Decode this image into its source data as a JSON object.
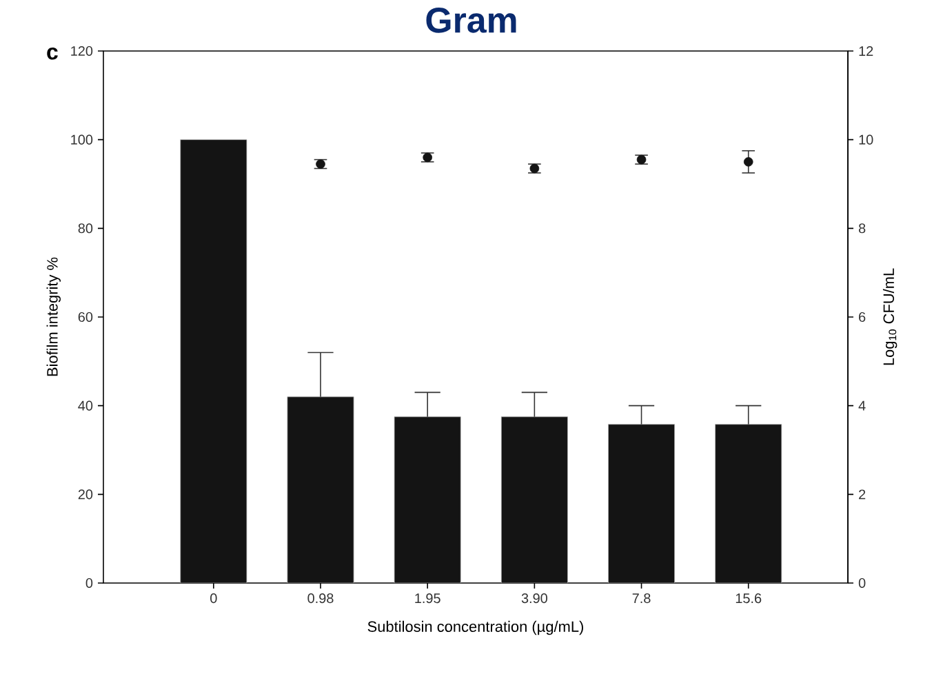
{
  "chart_data": {
    "type": "bar",
    "title": "Gram",
    "xlabel": "Subtilosin concentration (µg/mL)",
    "ylabel": "Biofilm integrity %",
    "y2label": "Log$_{10}$ CFU/mL",
    "annotations": [
      "c"
    ],
    "categories": [
      "0",
      "0.98",
      "1.95",
      "3.90",
      "7.8",
      "15.6"
    ],
    "ylim": [
      0,
      120
    ],
    "yticks": [
      0,
      20,
      40,
      60,
      80,
      100,
      120
    ],
    "y2lim": [
      0,
      12
    ],
    "y2ticks": [
      0,
      2,
      4,
      6,
      8,
      10,
      12
    ],
    "grid": false,
    "series": [
      {
        "color": "#141414",
        "values": [
          100,
          42,
          37.5,
          37.5,
          35.8,
          35.8
        ],
        "errors": [
          null,
          10,
          5.5,
          5.5,
          4.2,
          4.2
        ]
      },
      {
        "type": "scatter",
        "axis": "y2",
        "color": "#141414",
        "marker": "circle",
        "values": [
          null,
          9.45,
          9.6,
          9.35,
          9.55,
          9.5
        ],
        "errors": [
          null,
          0.1,
          0.1,
          0.1,
          0.1,
          0.25
        ]
      }
    ]
  }
}
